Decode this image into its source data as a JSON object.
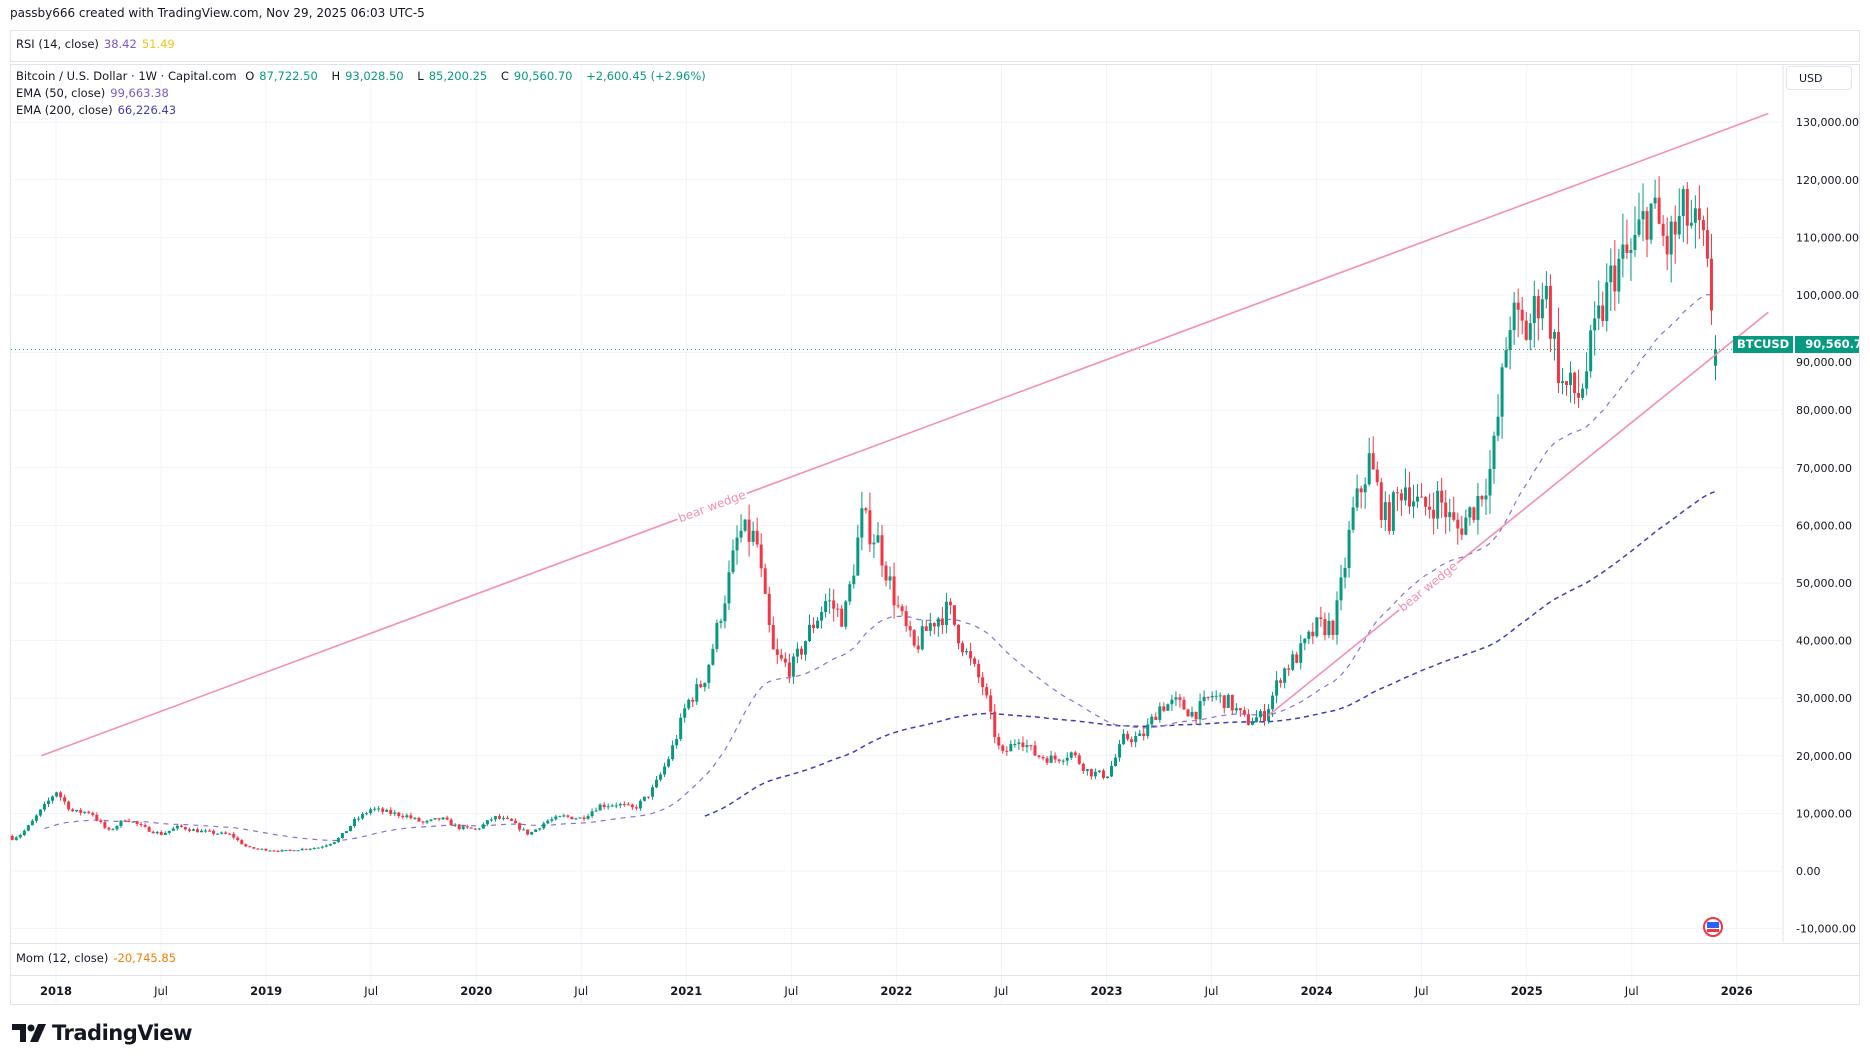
{
  "header": {
    "attribution": "passby666 created with TradingView.com, Nov 29, 2025 06:03 UTC-5"
  },
  "rsi": {
    "label": "RSI (14, close)",
    "value1": "38.42",
    "value2": "51.49"
  },
  "main_legend": {
    "symbol": "Bitcoin / U.S. Dollar · 1W · Capital.com",
    "open_label": "O",
    "open": "87,722.50",
    "high_label": "H",
    "high": "93,028.50",
    "low_label": "L",
    "low": "85,200.25",
    "close_label": "C",
    "close": "90,560.70",
    "change": "+2,600.45 (+2.96%)"
  },
  "ema50": {
    "label": "EMA (50, close)",
    "value": "99,663.38"
  },
  "ema200": {
    "label": "EMA (200, close)",
    "value": "66,226.43"
  },
  "currency_button": "USD",
  "price_tag": {
    "symbol": "BTCUSD",
    "price": "90,560.70"
  },
  "momentum": {
    "label": "Mom (12, close)",
    "value": "-20,745.85"
  },
  "annotations": {
    "upper_wedge": "bear wedge",
    "lower_wedge": "bear wedge"
  },
  "logo": {
    "text": "TradingView"
  },
  "icons": {
    "event_flag": "us-flag-icon",
    "logo": "tradingview-logo-icon"
  },
  "colors": {
    "up": "#089981",
    "down": "#f23645",
    "ema50": "#8c6fd6",
    "ema200": "#3f3fb0",
    "wedge": "#f48fb1",
    "price_line": "#089981"
  },
  "chart_data": {
    "type": "candlestick",
    "interval": "1W",
    "y_axis_ticks": [
      "130,000.00",
      "120,000.00",
      "110,000.00",
      "100,000.00",
      "90,000.00",
      "80,000.00",
      "70,000.00",
      "60,000.00",
      "50,000.00",
      "40,000.00",
      "30,000.00",
      "20,000.00",
      "10,000.00",
      "0.00",
      "-10,000.00"
    ],
    "y_tick_values": [
      130000,
      120000,
      110000,
      100000,
      90000,
      80000,
      70000,
      60000,
      50000,
      40000,
      30000,
      20000,
      10000,
      0,
      -10000
    ],
    "x_axis_ticks": [
      {
        "label": "2018",
        "t": 2018.0
      },
      {
        "label": "Jul",
        "t": 2018.5
      },
      {
        "label": "2019",
        "t": 2019.0
      },
      {
        "label": "Jul",
        "t": 2019.5
      },
      {
        "label": "2020",
        "t": 2020.0
      },
      {
        "label": "Jul",
        "t": 2020.5
      },
      {
        "label": "2021",
        "t": 2021.0
      },
      {
        "label": "Jul",
        "t": 2021.5
      },
      {
        "label": "2022",
        "t": 2022.0
      },
      {
        "label": "Jul",
        "t": 2022.5
      },
      {
        "label": "2023",
        "t": 2023.0
      },
      {
        "label": "Jul",
        "t": 2023.5
      },
      {
        "label": "2024",
        "t": 2024.0
      },
      {
        "label": "Jul",
        "t": 2024.5
      },
      {
        "label": "2025",
        "t": 2025.0
      },
      {
        "label": "Jul",
        "t": 2025.5
      },
      {
        "label": "2026",
        "t": 2026.0
      }
    ],
    "ylim": [
      -12000,
      137000
    ],
    "monthly_close_approx": {
      "start": "2017-10",
      "values": [
        6400,
        10000,
        14000,
        10200,
        10300,
        6900,
        9200,
        7500,
        6400,
        7700,
        7000,
        6600,
        6300,
        4000,
        3700,
        3450,
        3800,
        4100,
        5300,
        8600,
        10800,
        10100,
        9600,
        8300,
        9150,
        7550,
        7200,
        9350,
        8600,
        6400,
        8650,
        9450,
        9150,
        11350,
        11650,
        10800,
        13800,
        19700,
        29000,
        33100,
        45200,
        58800,
        57700,
        37300,
        35000,
        41500,
        47100,
        43800,
        61300,
        57000,
        46300,
        38500,
        43200,
        45500,
        37700,
        31800,
        19900,
        23300,
        20050,
        19400,
        20500,
        17150,
        16550,
        23100,
        23150,
        28500,
        29250,
        27200,
        30500,
        29250,
        25950,
        27000,
        34500,
        37700,
        42300,
        42600,
        61200,
        71300,
        60600,
        67500,
        62700,
        64600,
        59000,
        63300,
        70200,
        96400,
        93400,
        102400,
        84400,
        82500,
        94200,
        104600,
        107100,
        115700,
        108200,
        114000,
        109500,
        90560.7
      ]
    },
    "last_candle": {
      "open": 87722.5,
      "high": 93028.5,
      "low": 85200.25,
      "close": 90560.7
    },
    "trendlines": [
      {
        "name": "upper wedge",
        "from": {
          "t": 2017.93,
          "price": 20000
        },
        "to": {
          "t": 2026.15,
          "price": 131500
        }
      },
      {
        "name": "lower wedge",
        "from": {
          "t": 2023.77,
          "price": 27000
        },
        "to": {
          "t": 2026.15,
          "price": 97000
        }
      }
    ]
  }
}
